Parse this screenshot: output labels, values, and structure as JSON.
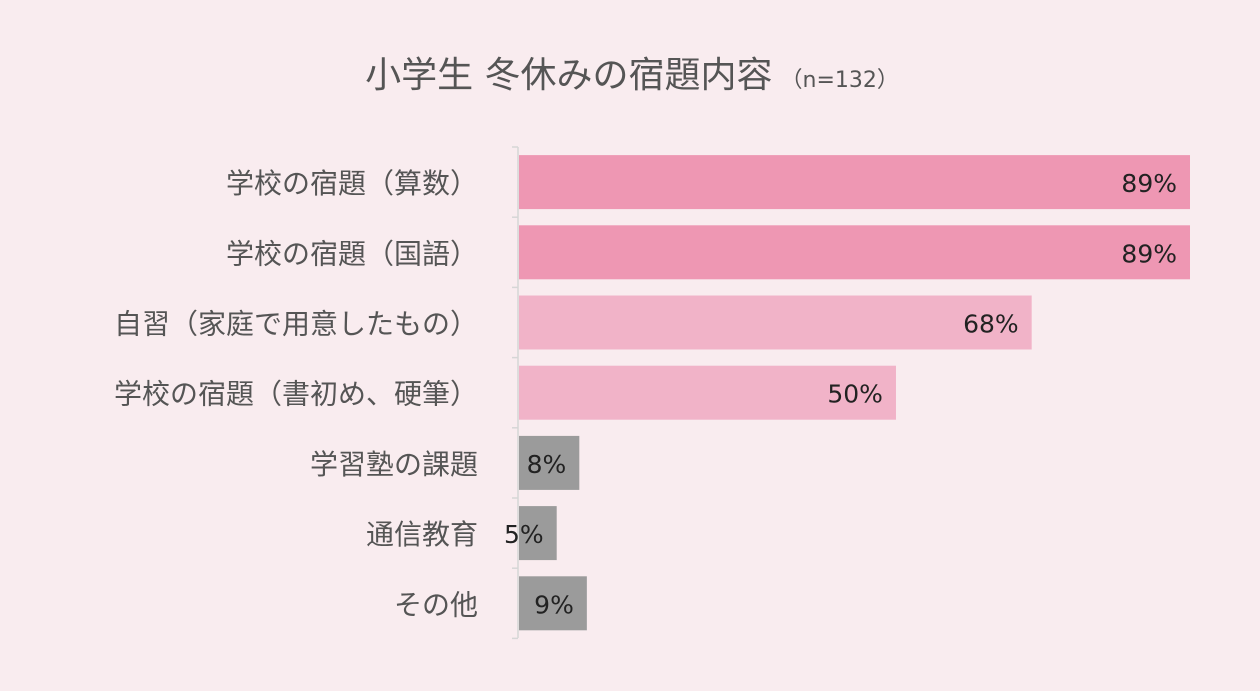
{
  "chart_data": {
    "type": "bar",
    "orientation": "horizontal",
    "title": "小学生 冬休みの宿題内容",
    "subtitle": "（n=132）",
    "categories": [
      "学校の宿題（算数）",
      "学校の宿題（国語）",
      "自習（家庭で用意したもの）",
      "学校の宿題（書初め、硬筆）",
      "学習塾の課題",
      "通信教育",
      "その他"
    ],
    "values": [
      89,
      89,
      68,
      50,
      8,
      5,
      9
    ],
    "value_labels": [
      "89%",
      "89%",
      "68%",
      "50%",
      "8%",
      "5%",
      "9%"
    ],
    "colors": [
      "#ee97b3",
      "#ee97b3",
      "#f1b3c8",
      "#f1b3c8",
      "#9b9b9b",
      "#9b9b9b",
      "#9b9b9b"
    ],
    "xlim": [
      0,
      89
    ],
    "legend": "none",
    "grid": false,
    "background": "#f9ecef",
    "axis_color": "#d6d6d6",
    "text_color": "#555555",
    "value_text_color": "#222222"
  }
}
